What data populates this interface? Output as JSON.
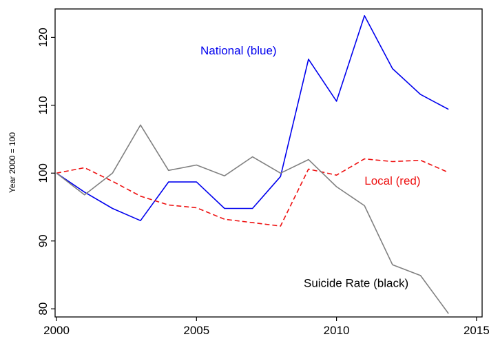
{
  "chart_data": {
    "type": "line",
    "title": "",
    "xlabel": "",
    "ylabel": "Year 2000 = 100",
    "x": [
      2000,
      2001,
      2002,
      2003,
      2004,
      2005,
      2006,
      2007,
      2008,
      2009,
      2010,
      2011,
      2012,
      2013,
      2014
    ],
    "xlim": [
      1999.95,
      2015.2
    ],
    "ylim": [
      78.8,
      124.2
    ],
    "xticks": [
      2000,
      2005,
      2010,
      2015
    ],
    "yticks": [
      80,
      90,
      100,
      110,
      120
    ],
    "xtick_labels": [
      "2000",
      "2005",
      "2010",
      "2015"
    ],
    "ytick_labels": [
      "80",
      "90",
      "100",
      "110",
      "120"
    ],
    "grid": false,
    "legend": "none",
    "series": [
      {
        "name": "National (blue)",
        "color": "#0000ee",
        "dash": "solid",
        "values": [
          100,
          97.2,
          94.8,
          93.0,
          98.7,
          98.7,
          94.8,
          94.8,
          99.5,
          116.8,
          110.6,
          123.2,
          115.4,
          111.6,
          109.4
        ]
      },
      {
        "name": "Local (red)",
        "color": "#ee1111",
        "dash": "dashed",
        "values": [
          100,
          100.8,
          98.8,
          96.6,
          95.3,
          94.9,
          93.2,
          92.7,
          92.2,
          100.6,
          99.7,
          102.1,
          101.7,
          101.9,
          100.1
        ]
      },
      {
        "name": "Suicide Rate (black)",
        "color": "#808080",
        "dash": "solid",
        "values": [
          100,
          96.8,
          100.0,
          107.1,
          100.4,
          101.2,
          99.6,
          102.4,
          100.0,
          102.0,
          98.0,
          95.2,
          86.5,
          84.9,
          79.3
        ]
      }
    ],
    "annotations": [
      {
        "text": "National (blue)",
        "color": "#0000ee",
        "x": 2006.5,
        "y": 117.5
      },
      {
        "text": "Local (red)",
        "color": "#ee1111",
        "x": 2012.0,
        "y": 98.3
      },
      {
        "text": "Suicide Rate (black)",
        "color": "#000000",
        "x": 2010.7,
        "y": 83.2
      }
    ]
  }
}
